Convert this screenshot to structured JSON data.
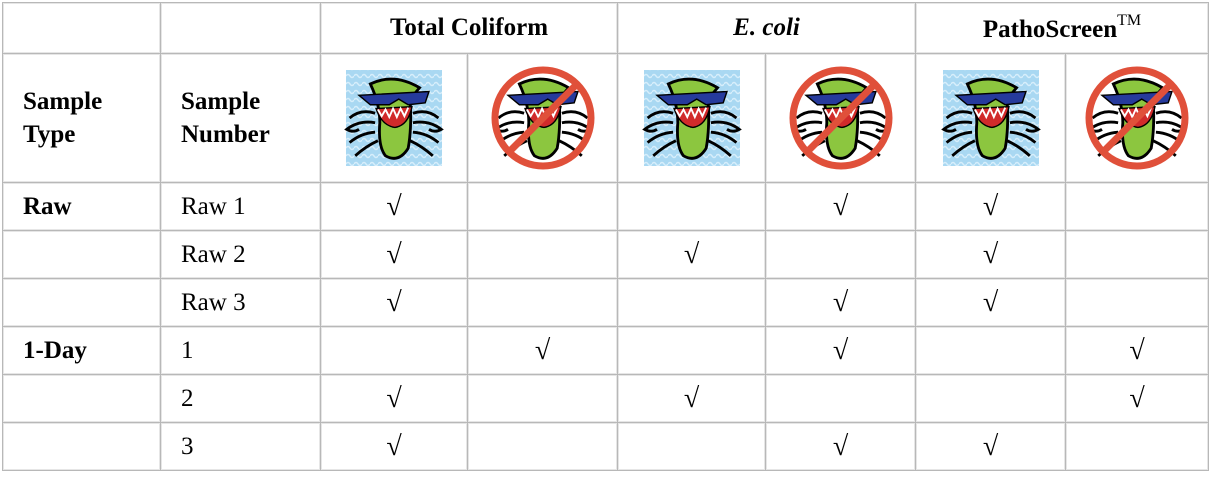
{
  "table": {
    "groups": [
      {
        "label": "Total Coliform"
      },
      {
        "label": "E. coli"
      },
      {
        "label": "PathoScreen",
        "superscript": "TM"
      }
    ],
    "row_headers": {
      "type": "Sample Type",
      "number": "Sample Number"
    },
    "rows": [
      {
        "type": "Raw",
        "number": "Raw 1",
        "cells": [
          "√",
          null,
          null,
          "√",
          "√",
          null
        ]
      },
      {
        "number": "Raw 2",
        "cells": [
          "√",
          null,
          "√",
          null,
          "√",
          null
        ]
      },
      {
        "number": "Raw 3",
        "cells": [
          "√",
          null,
          null,
          "√",
          "√",
          null
        ]
      },
      {
        "type": "1-Day",
        "number": "1",
        "cells": [
          null,
          "√",
          null,
          "√",
          null,
          "√"
        ]
      },
      {
        "number": "2",
        "cells": [
          "√",
          null,
          "√",
          null,
          null,
          "√"
        ]
      },
      {
        "number": "3",
        "cells": [
          "√",
          null,
          null,
          "√",
          "√",
          null
        ]
      }
    ]
  }
}
